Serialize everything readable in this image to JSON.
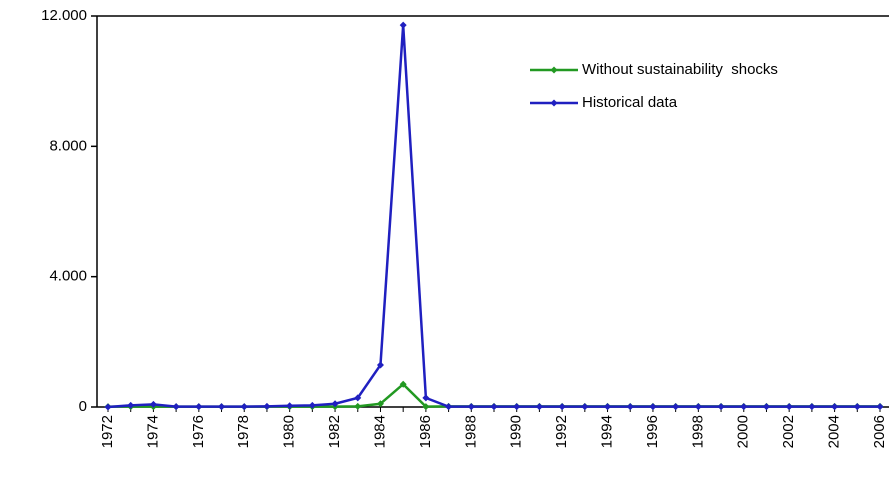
{
  "chart_data": {
    "type": "line",
    "categories": [
      "1972",
      null,
      "1974",
      null,
      "1976",
      null,
      "1978",
      null,
      "1980",
      null,
      "1982",
      null,
      "1984",
      null,
      "1986",
      null,
      "1988",
      null,
      "1990",
      null,
      "1992",
      null,
      "1994",
      null,
      "1996",
      null,
      "1998",
      null,
      "2000",
      null,
      "2002",
      null,
      "2004",
      null,
      "2006"
    ],
    "series": [
      {
        "name": "Without sustainability  shocks",
        "color": "#229922",
        "values": [
          10,
          10,
          10,
          10,
          10,
          10,
          10,
          10,
          10,
          10,
          10,
          20,
          100,
          700,
          10,
          20,
          20,
          20,
          20,
          20,
          20,
          20,
          20,
          20,
          20,
          20,
          20,
          20,
          20,
          20,
          20,
          20,
          20,
          20,
          20
        ]
      },
      {
        "name": "Historical data",
        "color": "#2020c0",
        "values": [
          0,
          50,
          80,
          10,
          10,
          10,
          10,
          20,
          40,
          50,
          100,
          280,
          1290,
          11720,
          280,
          10,
          10,
          10,
          10,
          10,
          10,
          10,
          10,
          10,
          10,
          10,
          10,
          10,
          10,
          10,
          10,
          10,
          10,
          10,
          10
        ]
      }
    ],
    "ylim": [
      0,
      12000
    ],
    "yticks": [
      0,
      {
        "value": 4000,
        "label": "4.000"
      },
      {
        "value": 8000,
        "label": "8.000"
      },
      {
        "value": 12000,
        "label": "12.000"
      }
    ],
    "grid": false,
    "legend": "upper right"
  }
}
